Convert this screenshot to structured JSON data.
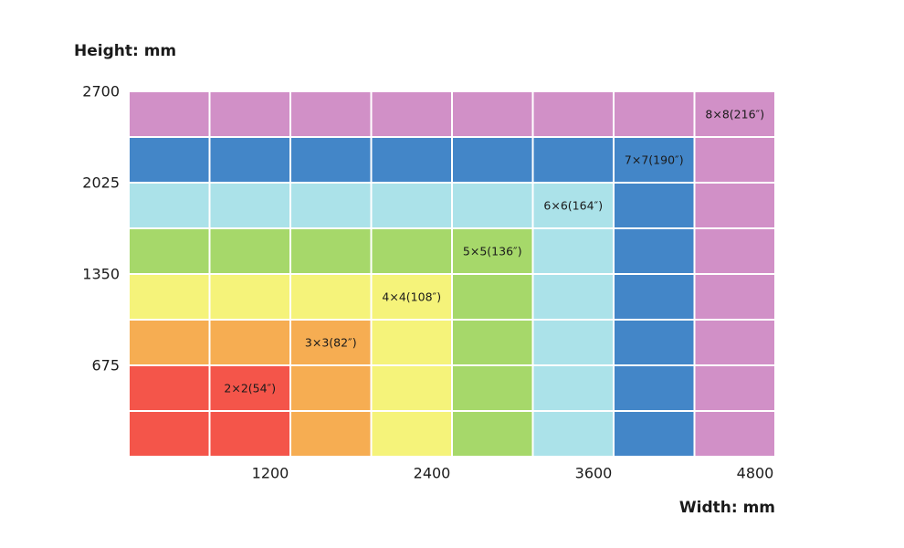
{
  "chart_data": {
    "type": "heatmap",
    "title": "",
    "xlabel": "Width: mm",
    "ylabel": "Height: mm",
    "xlim": [
      0,
      4800
    ],
    "ylim": [
      0,
      2700
    ],
    "x_ticks": [
      1200,
      2400,
      3600,
      4800
    ],
    "y_ticks": [
      2700,
      2025,
      1350,
      675
    ],
    "grid_columns": 8,
    "grid_rows": 8,
    "cell_size_mm": [
      600,
      337.5
    ],
    "grid": true,
    "series": [
      {
        "name": "2×2(54″)",
        "size": 2,
        "color": "#f4554a"
      },
      {
        "name": "3×3(82″)",
        "size": 3,
        "color": "#f6ad52"
      },
      {
        "name": "4×4(108″)",
        "size": 4,
        "color": "#f5f37a"
      },
      {
        "name": "5×5(136″)",
        "size": 5,
        "color": "#a6d86a"
      },
      {
        "name": "6×6(164″)",
        "size": 6,
        "color": "#abe2e9"
      },
      {
        "name": "7×7(190″)",
        "size": 7,
        "color": "#4386c8"
      },
      {
        "name": "8×8(216″)",
        "size": 8,
        "color": "#d190c7"
      }
    ]
  }
}
